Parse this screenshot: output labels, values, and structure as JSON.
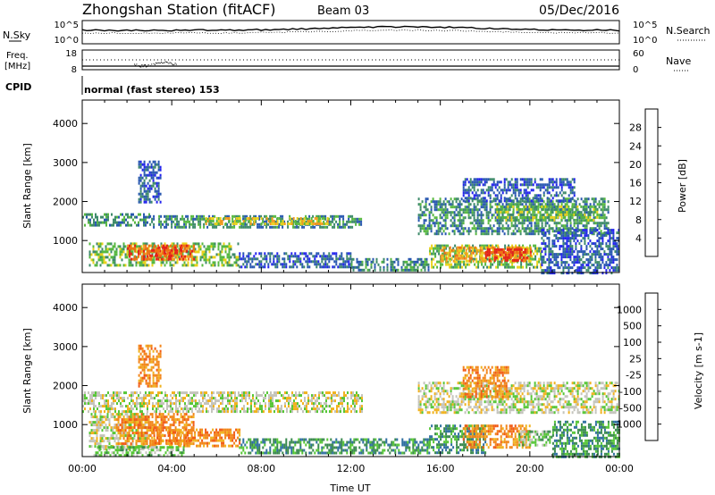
{
  "header": {
    "station": "Zhongshan Station (fitACF)",
    "beam": "Beam 03",
    "date": "05/Dec/2016"
  },
  "top_panels": {
    "nsky_label": "N.Sky",
    "nsky_ticks": [
      "10^5",
      "10^0"
    ],
    "nsearch_label": "N.Search",
    "nsearch_ticks": [
      "10^5",
      "10^0"
    ],
    "freq_label_1": "Freq.",
    "freq_label_2": "[MHz]",
    "freq_ticks": [
      "18",
      "8"
    ],
    "nave_label": "Nave",
    "nave_ticks": [
      "60",
      "0"
    ],
    "cpid_label": "CPID",
    "cpid_text": "normal (fast stereo) 153"
  },
  "chart_data": [
    {
      "type": "heatmap",
      "name": "power",
      "xlabel": "",
      "ylabel": "Slant Range [km]",
      "xlim_hours": [
        0,
        24
      ],
      "ylim": [
        180,
        4600
      ],
      "yticks": [
        "1000",
        "2000",
        "3000",
        "4000"
      ],
      "colorbar_label": "Power [dB]",
      "colorbar_ticks": [
        "4",
        "8",
        "12",
        "16",
        "20",
        "24",
        "28"
      ],
      "colorbar_colors": [
        "#2222ee",
        "#2857b0",
        "#3e8a6a",
        "#57b840",
        "#e9d21a",
        "#f39a1e",
        "#ef6f14",
        "#e4201a"
      ],
      "echo_regions": [
        {
          "t0": 0.0,
          "t1": 3.0,
          "r0": 1400,
          "r1": 1700,
          "level": 2
        },
        {
          "t0": 3.0,
          "t1": 12.5,
          "r0": 1350,
          "r1": 1650,
          "level": 2
        },
        {
          "t0": 5.5,
          "t1": 11.0,
          "r0": 1450,
          "r1": 1600,
          "level": 4
        },
        {
          "t0": 0.3,
          "t1": 7.0,
          "r0": 400,
          "r1": 950,
          "level": 3
        },
        {
          "t0": 2.0,
          "t1": 5.0,
          "r0": 550,
          "r1": 900,
          "level": 6
        },
        {
          "t0": 3.0,
          "t1": 4.5,
          "r0": 600,
          "r1": 850,
          "level": 7
        },
        {
          "t0": 7.0,
          "t1": 12.0,
          "r0": 300,
          "r1": 700,
          "level": 1
        },
        {
          "t0": 12.0,
          "t1": 15.5,
          "r0": 250,
          "r1": 550,
          "level": 2
        },
        {
          "t0": 15.5,
          "t1": 20.5,
          "r0": 300,
          "r1": 900,
          "level": 3
        },
        {
          "t0": 16.0,
          "t1": 20.0,
          "r0": 450,
          "r1": 850,
          "level": 5
        },
        {
          "t0": 18.0,
          "t1": 20.0,
          "r0": 500,
          "r1": 800,
          "level": 7
        },
        {
          "t0": 15.0,
          "t1": 23.5,
          "r0": 1200,
          "r1": 2100,
          "level": 2
        },
        {
          "t0": 18.5,
          "t1": 23.0,
          "r0": 1500,
          "r1": 1900,
          "level": 3
        },
        {
          "t0": 17.0,
          "t1": 22.0,
          "r0": 2000,
          "r1": 2600,
          "level": 1
        },
        {
          "t0": 20.5,
          "t1": 24.0,
          "r0": 200,
          "r1": 1300,
          "level": 1
        },
        {
          "t0": 2.5,
          "t1": 3.5,
          "r0": 2000,
          "r1": 3050,
          "level": 1
        }
      ]
    },
    {
      "type": "heatmap",
      "name": "velocity",
      "xlabel": "Time UT",
      "ylabel": "Slant Range [km]",
      "xlim_hours": [
        0,
        24
      ],
      "ylim": [
        180,
        4600
      ],
      "xticks": [
        "00:00",
        "04:00",
        "08:00",
        "12:00",
        "16:00",
        "20:00",
        "00:00"
      ],
      "yticks": [
        "1000",
        "2000",
        "3000",
        "4000"
      ],
      "colorbar_label": "Velocity [m s-1]",
      "colorbar_ticks": [
        "1000",
        "500",
        "100",
        "25",
        "-25",
        "-100",
        "-500",
        "-1000"
      ],
      "colorbar_colors": [
        "#2233cc",
        "#2f6fa0",
        "#3a8a4e",
        "#56c636",
        "#c4c4bc",
        "#f0b21e",
        "#f2861a",
        "#f15a14",
        "#e4201a"
      ],
      "echo_regions": [
        {
          "t0": 0.0,
          "t1": 12.5,
          "r0": 1350,
          "r1": 1850,
          "level": 4
        },
        {
          "t0": 0.3,
          "t1": 3.0,
          "r0": 400,
          "r1": 1300,
          "level": 4
        },
        {
          "t0": 1.5,
          "t1": 5.0,
          "r0": 500,
          "r1": 1300,
          "level": 6
        },
        {
          "t0": 3.0,
          "t1": 7.0,
          "r0": 450,
          "r1": 900,
          "level": 6
        },
        {
          "t0": 0.5,
          "t1": 4.5,
          "r0": 220,
          "r1": 450,
          "level": 3
        },
        {
          "t0": 7.0,
          "t1": 15.5,
          "r0": 300,
          "r1": 650,
          "level": 2
        },
        {
          "t0": 15.5,
          "t1": 18.0,
          "r0": 300,
          "r1": 1000,
          "level": 2
        },
        {
          "t0": 17.0,
          "t1": 20.0,
          "r0": 400,
          "r1": 1000,
          "level": 6
        },
        {
          "t0": 19.5,
          "t1": 21.0,
          "r0": 450,
          "r1": 850,
          "level": 3
        },
        {
          "t0": 15.0,
          "t1": 24.0,
          "r0": 1300,
          "r1": 2100,
          "level": 4
        },
        {
          "t0": 17.0,
          "t1": 19.0,
          "r0": 1700,
          "r1": 2500,
          "level": 6
        },
        {
          "t0": 21.0,
          "t1": 24.0,
          "r0": 200,
          "r1": 1100,
          "level": 2
        },
        {
          "t0": 2.5,
          "t1": 3.5,
          "r0": 2000,
          "r1": 3050,
          "level": 6
        }
      ]
    }
  ]
}
